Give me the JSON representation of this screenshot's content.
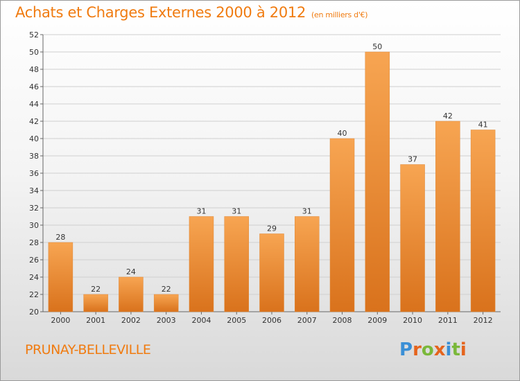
{
  "header": {
    "title": "Achats et Charges Externes 2000 à 2012",
    "subtitle": "(en milliers d'€)"
  },
  "footer": {
    "commune": "PRUNAY-BELLEVILLE",
    "logo_letters": [
      "P",
      "r",
      "o",
      "x",
      "i",
      "t",
      "i"
    ]
  },
  "colors": {
    "accent": "#f07b10",
    "bar_top": "#f7a552",
    "bar_bottom": "#d9721c",
    "logo": [
      "#3a8fd6",
      "#e5641d",
      "#7ab83a",
      "#e5641d",
      "#3a8fd6",
      "#7ab83a",
      "#e5641d"
    ]
  },
  "chart_data": {
    "type": "bar",
    "title": "Achats et Charges Externes 2000 à 2012",
    "subtitle": "(en milliers d'€)",
    "xlabel": "",
    "ylabel": "",
    "categories": [
      "2000",
      "2001",
      "2002",
      "2003",
      "2004",
      "2005",
      "2006",
      "2007",
      "2008",
      "2009",
      "2010",
      "2011",
      "2012"
    ],
    "values": [
      28,
      22,
      24,
      22,
      31,
      31,
      29,
      31,
      40,
      50,
      37,
      42,
      41
    ],
    "data_labels": [
      "28",
      "22",
      "24",
      "22",
      "31",
      "31",
      "29",
      "31",
      "40",
      "50",
      "37",
      "42",
      "41"
    ],
    "ylim": [
      20,
      52
    ],
    "yticks": [
      20,
      22,
      24,
      26,
      28,
      30,
      32,
      34,
      36,
      38,
      40,
      42,
      44,
      46,
      48,
      50,
      52
    ],
    "grid": true,
    "legend": "none"
  }
}
